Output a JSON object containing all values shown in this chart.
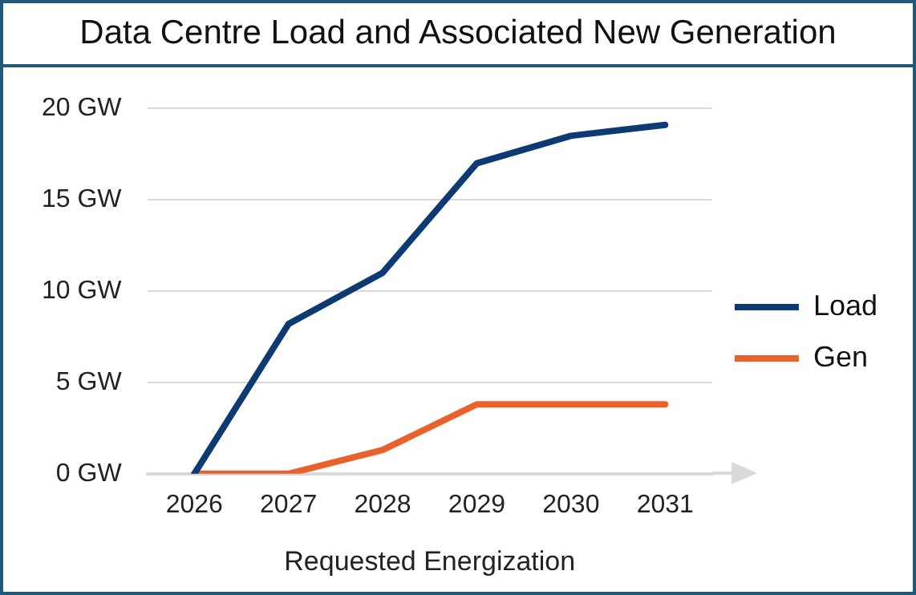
{
  "chart_data": {
    "type": "line",
    "title": "Data Centre Load and Associated New Generation",
    "xlabel": "Requested Energization",
    "categories": [
      "2026",
      "2027",
      "2028",
      "2029",
      "2030",
      "2031"
    ],
    "series": [
      {
        "name": "Load",
        "color": "#0e3a74",
        "values": [
          0,
          8.2,
          11.0,
          17.0,
          18.5,
          19.1
        ]
      },
      {
        "name": "Gen",
        "color": "#e9612b",
        "values": [
          0,
          0,
          1.3,
          3.8,
          3.8,
          3.8
        ]
      }
    ],
    "ylim": [
      0,
      20
    ],
    "yticks": [
      {
        "value": 0,
        "label": "0 GW"
      },
      {
        "value": 5,
        "label": "5 GW"
      },
      {
        "value": 10,
        "label": "10 GW"
      },
      {
        "value": 15,
        "label": "15 GW"
      },
      {
        "value": 20,
        "label": "20 GW"
      }
    ],
    "grid": "y",
    "legend": "right",
    "marker": "none",
    "line_style": "solid"
  }
}
